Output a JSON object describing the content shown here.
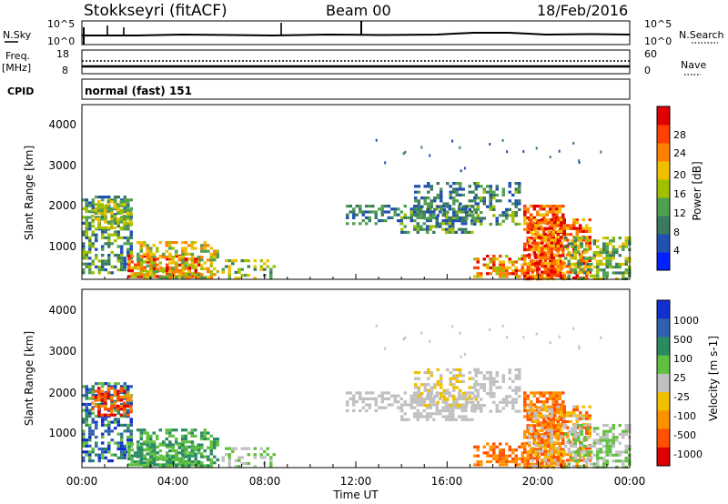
{
  "header": {
    "station": "Stokkseyri (fitACF)",
    "beam": "Beam 00",
    "date": "18/Feb/2016"
  },
  "sky_panel": {
    "left_label": "N.Sky",
    "left_ticks": [
      "10^5",
      "10^0"
    ],
    "right_label": "N.Search",
    "right_ticks": [
      "10^5",
      "10^0"
    ]
  },
  "freq_panel": {
    "left_label_line1": "Freq.",
    "left_label_line2": "[MHz]",
    "left_ticks": [
      "18",
      "8"
    ],
    "right_label": "Nave",
    "right_ticks": [
      "60",
      "0"
    ]
  },
  "cpid_panel": {
    "label": "CPID",
    "value": "normal (fast) 151"
  },
  "time_axis": {
    "label": "Time UT",
    "ticks": [
      "00:00",
      "04:00",
      "08:00",
      "12:00",
      "16:00",
      "20:00",
      "00:00"
    ]
  },
  "power_panel": {
    "ylabel": "Slant Range [km]",
    "yticks": [
      "1000",
      "2000",
      "3000",
      "4000"
    ],
    "colorbar_label": "Power [dB]",
    "colorbar_ticks": [
      "4",
      "8",
      "12",
      "16",
      "20",
      "24",
      "28"
    ],
    "colors": [
      "#0020ff",
      "#2050b0",
      "#3a7a60",
      "#50a050",
      "#a0c000",
      "#f0c000",
      "#ff8000",
      "#ff4000",
      "#e00000"
    ]
  },
  "velocity_panel": {
    "ylabel": "Slant Range [km]",
    "yticks": [
      "1000",
      "2000",
      "3000",
      "4000"
    ],
    "colorbar_label": "Velocity [m s-1]",
    "colorbar_ticks": [
      "1000",
      "500",
      "100",
      "25",
      "-25",
      "-100",
      "-500",
      "-1000"
    ],
    "colors": [
      "#1030d0",
      "#3060b0",
      "#2a8a60",
      "#60c040",
      "#c0c0c0",
      "#f0c000",
      "#ff9000",
      "#ff5000",
      "#e00000"
    ]
  },
  "chart_data": [
    {
      "type": "line",
      "title": "N.Sky / N.Search",
      "x_range_hours": [
        0,
        24
      ],
      "series": [
        {
          "name": "N.Sky",
          "x": [
            0,
            1,
            2,
            8.6,
            11.8,
            24
          ],
          "spikes": [
            0.05,
            1.0,
            2.0,
            8.6,
            11.8
          ]
        }
      ]
    },
    {
      "type": "heatmap",
      "title": "Power [dB]",
      "x_range_hours": [
        0,
        24
      ],
      "ylim_km": [
        180,
        4500
      ],
      "colorbar_range": [
        0,
        32
      ]
    },
    {
      "type": "heatmap",
      "title": "Velocity [m s-1]",
      "x_range_hours": [
        0,
        24
      ],
      "ylim_km": [
        180,
        4500
      ],
      "colorbar_range": [
        -1200,
        1200
      ]
    }
  ]
}
